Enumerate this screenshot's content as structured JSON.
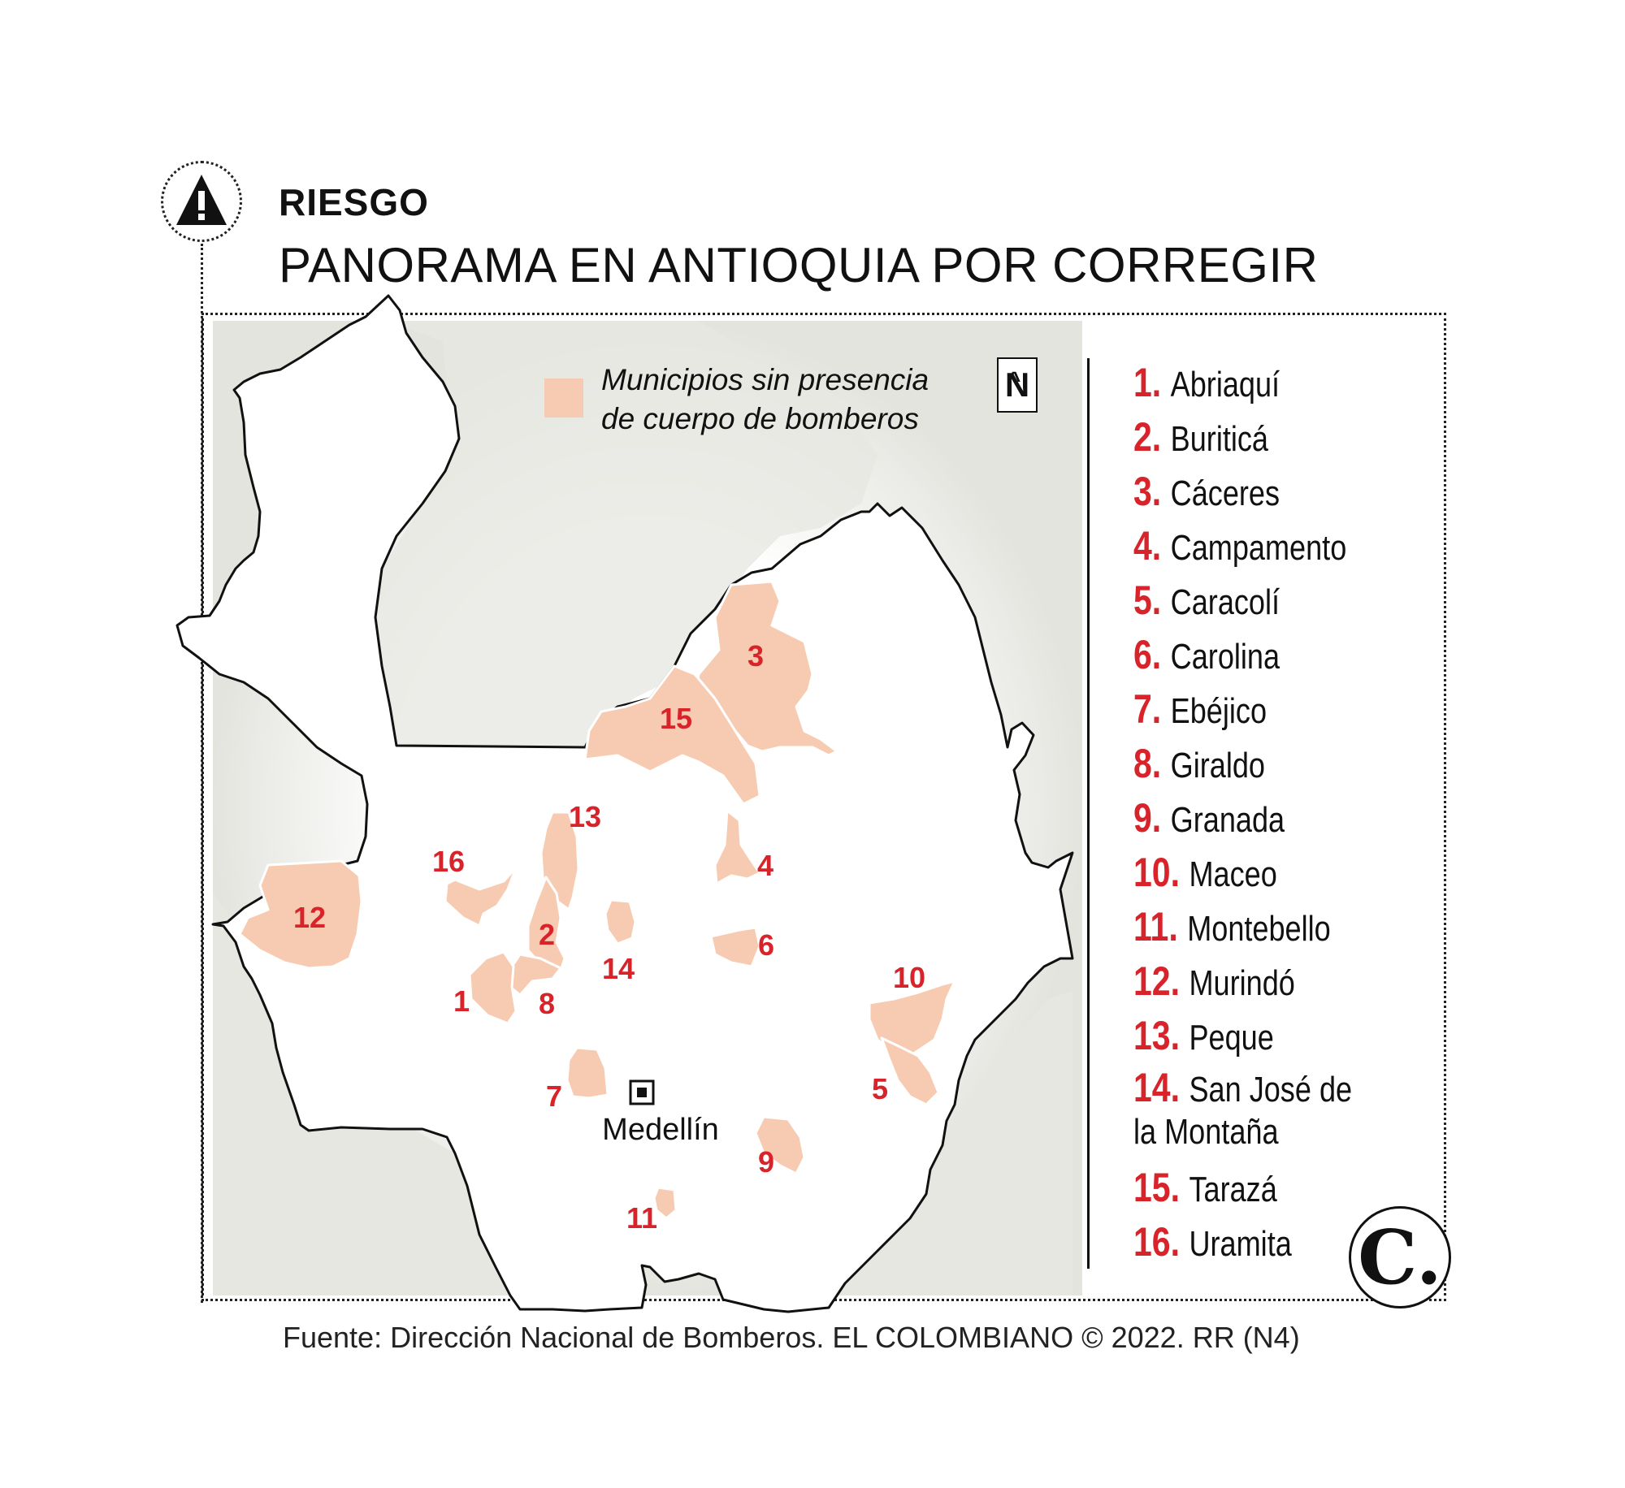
{
  "header": {
    "kicker": "RIESGO",
    "title": "PANORAMA EN ANTIOQUIA POR CORREGIR",
    "icon": "warning-triangle-icon"
  },
  "legend": {
    "line1": "Municipios sin presencia",
    "line2": "de cuerpo de bomberos",
    "swatch_color": "#f7cbb1"
  },
  "north_label": "N",
  "city": {
    "name": "Medellín"
  },
  "colors": {
    "number_red": "#d8232a",
    "highlight": "#f7cbb1",
    "neighbor_gray": "#e7e7e2",
    "outline": "#111111"
  },
  "municipalities": [
    {
      "num": "1.",
      "name": "Abriaquí"
    },
    {
      "num": "2.",
      "name": "Buriticá"
    },
    {
      "num": "3.",
      "name": "Cáceres"
    },
    {
      "num": "4.",
      "name": "Campamento"
    },
    {
      "num": "5.",
      "name": "Caracolí"
    },
    {
      "num": "6.",
      "name": "Carolina"
    },
    {
      "num": "7.",
      "name": "Ebéjico"
    },
    {
      "num": "8.",
      "name": "Giraldo"
    },
    {
      "num": "9.",
      "name": "Granada"
    },
    {
      "num": "10.",
      "name": "Maceo"
    },
    {
      "num": "11.",
      "name": "Montebello"
    },
    {
      "num": "12.",
      "name": "Murindó"
    },
    {
      "num": "13.",
      "name": "Peque"
    },
    {
      "num": "14.",
      "name": "San José de la Montaña"
    },
    {
      "num": "15.",
      "name": "Tarazá"
    },
    {
      "num": "16.",
      "name": "Uramita"
    }
  ],
  "map_labels": [
    "1",
    "2",
    "3",
    "4",
    "5",
    "6",
    "7",
    "8",
    "9",
    "10",
    "11",
    "12",
    "13",
    "14",
    "15",
    "16"
  ],
  "source": "Fuente: Dirección Nacional de Bomberos. EL COLOMBIANO © 2022. RR (N4)",
  "logo": "C."
}
